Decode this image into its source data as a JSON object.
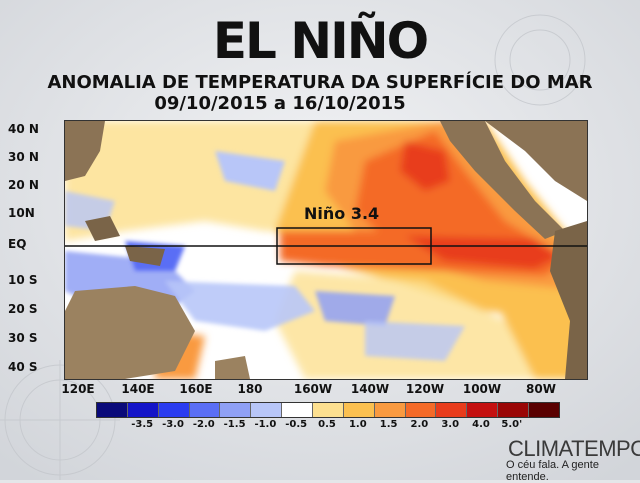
{
  "header": {
    "title": "EL NIÑO",
    "subtitle": "ANOMALIA DE TEMPERATURA DA SUPERFÍCIE DO MAR",
    "date_range": "09/10/2015 a 16/10/2015"
  },
  "map": {
    "latitude_labels": [
      "40 N",
      "30 N",
      "20 N",
      "10N",
      "EQ",
      "10 S",
      "20 S",
      "30 S",
      "40 S"
    ],
    "longitude_labels": [
      "120E",
      "140E",
      "160E",
      "180",
      "160W",
      "140W",
      "120W",
      "100W",
      "80W"
    ],
    "region_label": "Niño 3.4",
    "colors": {
      "land": "#8b7355",
      "ocean_neutral": "#ffffff"
    }
  },
  "legend": {
    "values": [
      "-3.5",
      "-3.0",
      "-2.0",
      "-1.5",
      "-1.0",
      "-0.5",
      "0.5",
      "1.0",
      "1.5",
      "2.0",
      "3.0",
      "4.0",
      "5.0'"
    ],
    "colors": [
      "#0a0a7a",
      "#1414c8",
      "#2a3cf0",
      "#5a6ef5",
      "#8fa0f5",
      "#b8c6f8",
      "#ffffff",
      "#fde090",
      "#fbc050",
      "#f99a40",
      "#f46a28",
      "#e83c1c",
      "#c41010",
      "#9a0606",
      "#5a0000"
    ]
  },
  "brand": {
    "name": "CLIMATEMPO",
    "tagline": "O céu fala. A gente entende."
  }
}
